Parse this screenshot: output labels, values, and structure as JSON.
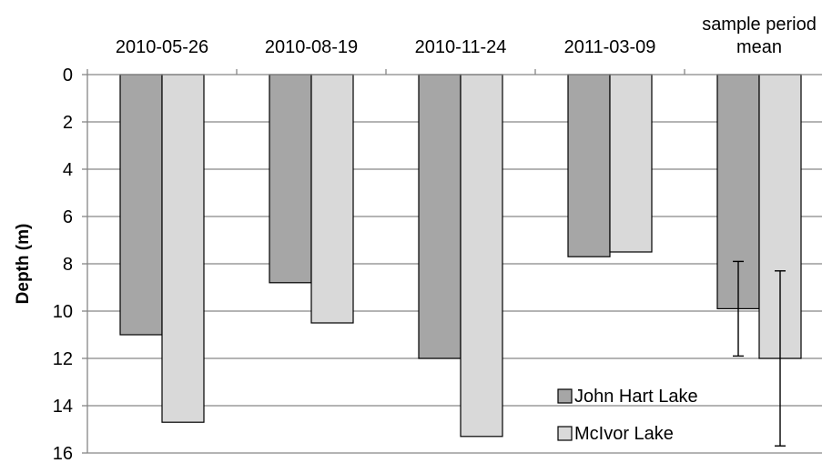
{
  "chart_data": {
    "type": "bar",
    "categories": [
      "2010-05-26",
      "2010-08-19",
      "2010-11-24",
      "2011-03-09",
      "sample period mean"
    ],
    "category_lines": [
      [
        "2010-05-26"
      ],
      [
        "2010-08-19"
      ],
      [
        "2010-11-24"
      ],
      [
        "2011-03-09"
      ],
      [
        "sample period",
        "mean"
      ]
    ],
    "series": [
      {
        "name": "John Hart Lake",
        "values": [
          11.0,
          8.8,
          12.0,
          7.7,
          9.9
        ],
        "color": "#a6a6a6"
      },
      {
        "name": "McIvor Lake",
        "values": [
          14.7,
          10.5,
          15.3,
          7.5,
          12.0
        ],
        "color": "#d9d9d9"
      }
    ],
    "error_bars": {
      "category": "sample period mean",
      "John Hart Lake": [
        7.9,
        11.9
      ],
      "McIvor Lake": [
        8.3,
        15.7
      ]
    },
    "ylabel": "Depth (m)",
    "xlabel": "",
    "title": "",
    "ylim": [
      0,
      16
    ],
    "y_ticks": [
      0,
      2,
      4,
      6,
      8,
      10,
      12,
      14,
      16
    ],
    "y_axis_inverted": true,
    "x_axis_position": "top",
    "grid": true,
    "legend_position": "bottom-right"
  }
}
